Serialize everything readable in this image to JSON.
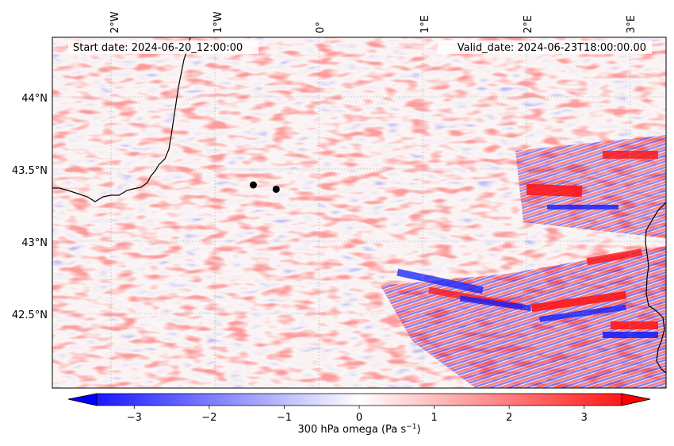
{
  "annotations": {
    "start_date": "Start date: 2024-06-20_12:00:00",
    "valid_date": "Valid_date: 2024-06-23T18:00:00.00"
  },
  "axes": {
    "lon_labels": [
      "2°W",
      "1°W",
      "0°",
      "1°E",
      "2°E",
      "3°E"
    ],
    "lat_labels": [
      "44°N",
      "43.5°N",
      "43°N",
      "42.5°N"
    ]
  },
  "colorbar": {
    "label_prefix": "300 hPa omega (Pa s",
    "label_exp": "−1",
    "label_suffix": ")",
    "ticks": [
      "−3",
      "−2",
      "−1",
      "0",
      "1",
      "2",
      "3"
    ],
    "range": [
      -3.5,
      3.5
    ],
    "cmap": [
      "#0000ff",
      "#ffffff",
      "#ff0000"
    ]
  },
  "markers": [
    {
      "name": "point-1",
      "lon": -0.63,
      "lat": 43.39
    },
    {
      "name": "point-2",
      "lon": -0.41,
      "lat": 43.36
    }
  ],
  "colors": {
    "coast": "#000000",
    "grid": "#b0b0b0",
    "marker": "#000000"
  }
}
